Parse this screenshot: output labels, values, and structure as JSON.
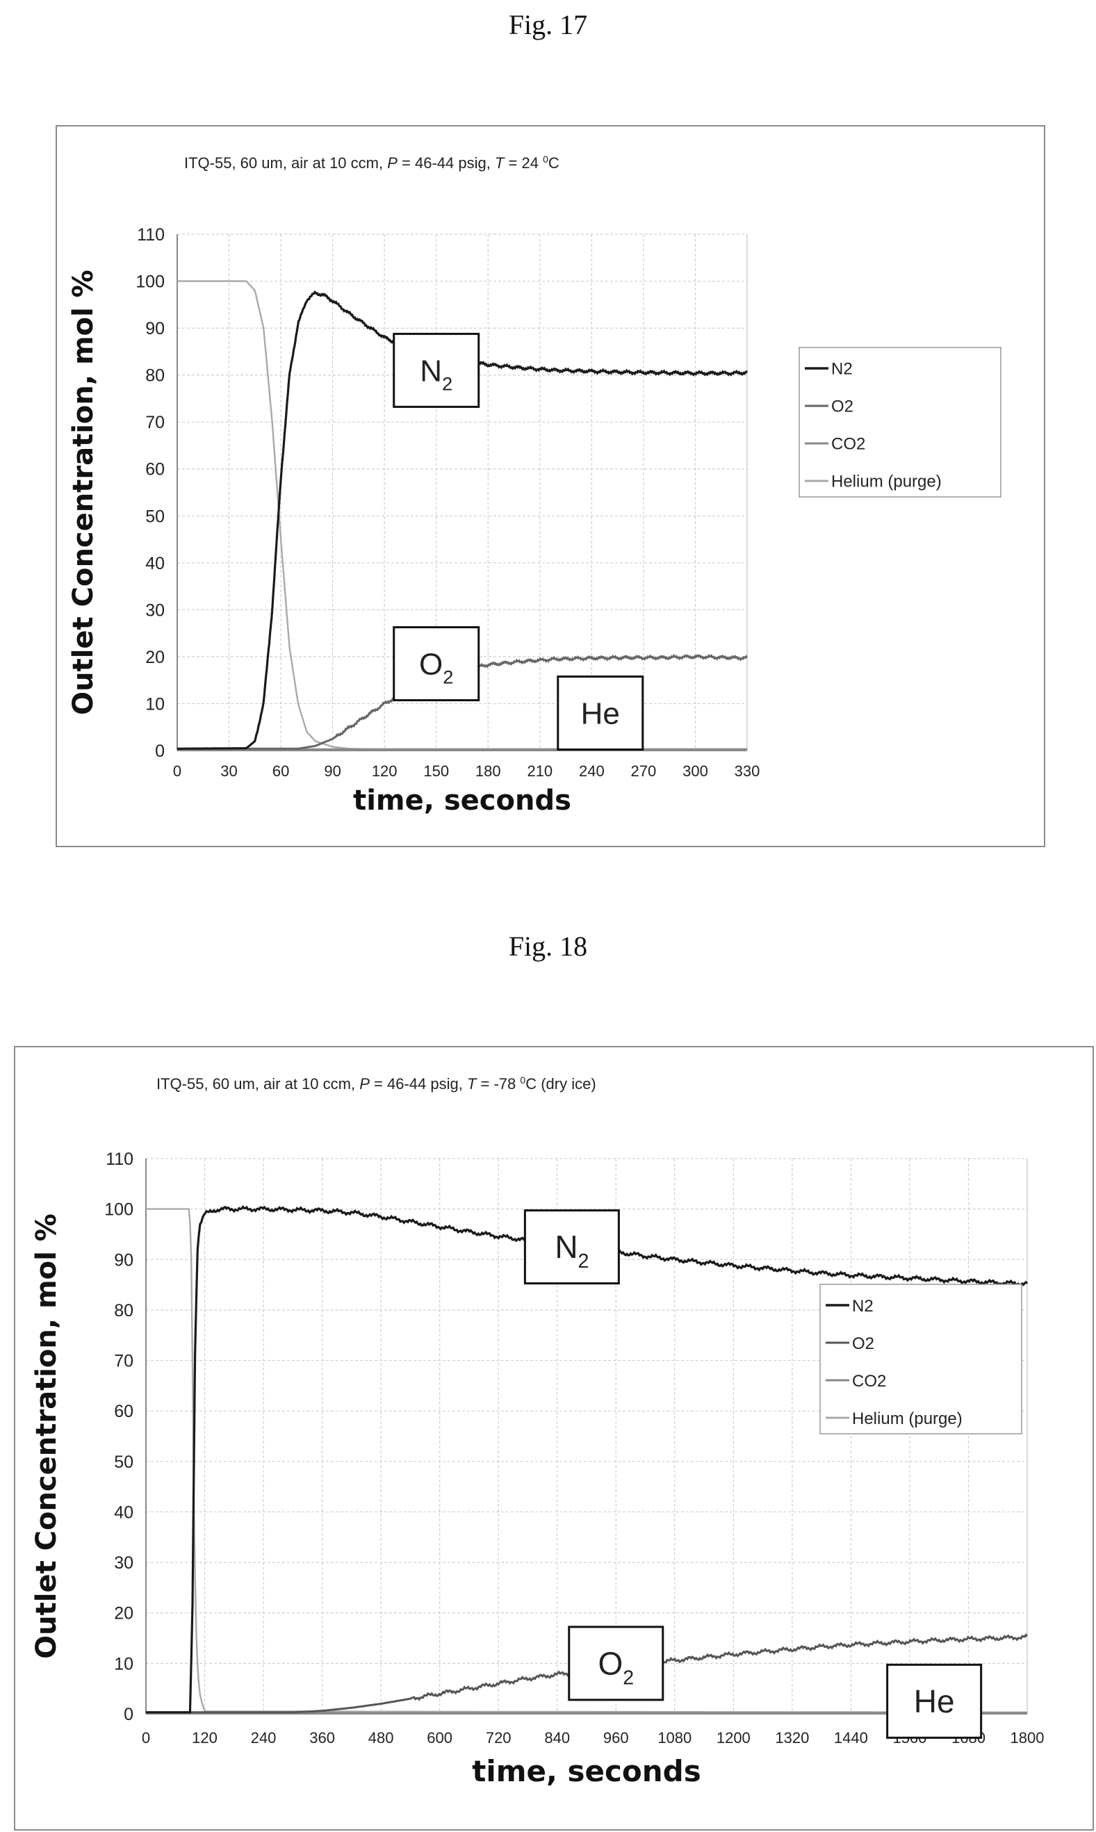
{
  "figures": [
    {
      "label": "Fig. 17",
      "chart_data": {
        "type": "line",
        "title": "ITQ-55, 60 um, air at 10 ccm, P = 46-44 psig, T = 24 ⁰C",
        "title_parts": [
          "ITQ-55, 60 um, air at 10 ccm, ",
          "P",
          " = 46-44 psig, ",
          "T",
          " = 24 ",
          "0",
          "C",
          ""
        ],
        "xlabel": "time, seconds",
        "ylabel": "Outlet Concentration, mol %",
        "xlim": [
          0,
          330
        ],
        "ylim": [
          0,
          110
        ],
        "x_ticks": [
          "0",
          "30",
          "60",
          "90",
          "120",
          "150",
          "180",
          "210",
          "240",
          "270",
          "300",
          "330"
        ],
        "y_ticks": [
          "0",
          "10",
          "20",
          "30",
          "40",
          "50",
          "60",
          "70",
          "80",
          "90",
          "100",
          "110"
        ],
        "grid": true,
        "legend": {
          "position": "right",
          "entries": [
            "N2",
            "O2",
            "CO2",
            "Helium (purge)"
          ]
        },
        "annotations": [
          {
            "main": "N",
            "sub": "2",
            "x": 150,
            "y": 81
          },
          {
            "main": "O",
            "sub": "2",
            "x": 150,
            "y": 18.5
          },
          {
            "main": "He",
            "sub": "",
            "x": 245,
            "y": 8
          }
        ],
        "series": [
          {
            "name": "N2",
            "color": "#1a1a1a",
            "x": [
              0,
              40,
              45,
              50,
              55,
              60,
              65,
              70,
              75,
              80,
              85,
              90,
              100,
              110,
              120,
              130,
              140,
              150,
              160,
              170,
              180,
              200,
              220,
              240,
              260,
              280,
              300,
              320,
              330
            ],
            "y": [
              0.4,
              0.5,
              2,
              10,
              30,
              58,
              80,
              91,
              96,
              97.5,
              97,
              95.8,
              93,
              90.5,
              88,
              86.3,
              85,
              84,
              83.3,
              82.8,
              82.2,
              81.5,
              81,
              80.8,
              80.6,
              80.5,
              80.4,
              80.4,
              80.5
            ]
          },
          {
            "name": "O2",
            "color": "#666666",
            "x": [
              0,
              70,
              80,
              90,
              100,
              110,
              120,
              130,
              140,
              150,
              160,
              170,
              180,
              200,
              220,
              240,
              260,
              280,
              300,
              320,
              330
            ],
            "y": [
              0.4,
              0.4,
              1,
              2.5,
              5,
              7.5,
              10,
              12,
              14,
              15.5,
              16.5,
              17.5,
              18.3,
              19,
              19.5,
              19.7,
              19.8,
              19.8,
              20,
              19.8,
              19.7
            ]
          },
          {
            "name": "CO2",
            "color": "#888888",
            "x": [
              0,
              330
            ],
            "y": [
              0.3,
              0.3
            ]
          },
          {
            "name": "Helium (purge)",
            "color": "#a9a9a9",
            "x": [
              0,
              40,
              45,
              50,
              55,
              60,
              65,
              70,
              75,
              80,
              90,
              100,
              110,
              330
            ],
            "y": [
              100,
              100,
              98,
              90,
              70,
              45,
              22,
              10,
              4,
              2,
              0.8,
              0.4,
              0.3,
              0.3
            ]
          }
        ]
      }
    },
    {
      "label": "Fig. 18",
      "chart_data": {
        "type": "line",
        "title": "ITQ-55, 60 um, air at 10 ccm, P = 46-44 psig, T = -78 ⁰C (dry ice)",
        "title_parts": [
          "ITQ-55, 60 um, air at 10 ccm, ",
          "P",
          " = 46-44 psig, ",
          "T",
          " = -78 ",
          "0",
          "C",
          " (dry ice)"
        ],
        "xlabel": "time, seconds",
        "ylabel": "Outlet Concentration, mol %",
        "xlim": [
          0,
          1800
        ],
        "ylim": [
          0,
          110
        ],
        "x_ticks": [
          "0",
          "120",
          "240",
          "360",
          "480",
          "600",
          "720",
          "840",
          "960",
          "1080",
          "1200",
          "1320",
          "1440",
          "1560",
          "1680",
          "1800"
        ],
        "y_ticks": [
          "0",
          "10",
          "20",
          "30",
          "40",
          "50",
          "60",
          "70",
          "80",
          "90",
          "100",
          "110"
        ],
        "grid": true,
        "legend": {
          "position": "right",
          "entries": [
            "N2",
            "O2",
            "CO2",
            "Helium (purge)"
          ]
        },
        "annotations": [
          {
            "main": "N",
            "sub": "2",
            "x": 870,
            "y": 92.5
          },
          {
            "main": "O",
            "sub": "2",
            "x": 960,
            "y": 10
          },
          {
            "main": "He",
            "sub": "",
            "x": 1610,
            "y": 2.5
          }
        ],
        "series": [
          {
            "name": "N2",
            "color": "#1a1a1a",
            "x": [
              0,
              90,
              95,
              100,
              105,
              110,
              120,
              140,
              160,
              240,
              360,
              420,
              480,
              540,
              600,
              660,
              720,
              780,
              840,
              900,
              960,
              1020,
              1080,
              1140,
              1200,
              1260,
              1320,
              1380,
              1440,
              1500,
              1560,
              1620,
              1680,
              1740,
              1800
            ],
            "y": [
              0.3,
              0.3,
              20,
              70,
              92,
              97,
              99,
              99.8,
              100,
              100,
              99.7,
              99.3,
              98.5,
              97.5,
              96.5,
              95.5,
              94.6,
              93.8,
              93,
              92.2,
              91.5,
              90.7,
              90,
              89.4,
              88.8,
              88.3,
              87.8,
              87.3,
              86.9,
              86.6,
              86.3,
              86,
              85.7,
              85.4,
              85.2
            ]
          },
          {
            "name": "O2",
            "color": "#555555",
            "x": [
              0,
              300,
              360,
              420,
              480,
              540,
              600,
              660,
              720,
              780,
              840,
              900,
              960,
              1020,
              1080,
              1140,
              1200,
              1260,
              1320,
              1380,
              1440,
              1500,
              1560,
              1620,
              1680,
              1740,
              1800
            ],
            "y": [
              0.3,
              0.3,
              0.6,
              1.2,
              2,
              3,
              4,
              5,
              6,
              7,
              7.8,
              8.6,
              9.4,
              10,
              10.6,
              11.2,
              11.8,
              12.3,
              12.8,
              13.3,
              13.7,
              14,
              14.3,
              14.6,
              14.8,
              15,
              15.2
            ]
          },
          {
            "name": "CO2",
            "color": "#888888",
            "x": [
              0,
              1800
            ],
            "y": [
              0.2,
              0.2
            ]
          },
          {
            "name": "Helium (purge)",
            "color": "#a9a9a9",
            "x": [
              0,
              88,
              92,
              95,
              98,
              102,
              106,
              110,
              115,
              120,
              1800
            ],
            "y": [
              100,
              100,
              95,
              70,
              40,
              18,
              8,
              4,
              2,
              0.5,
              0.3
            ]
          }
        ]
      }
    }
  ]
}
